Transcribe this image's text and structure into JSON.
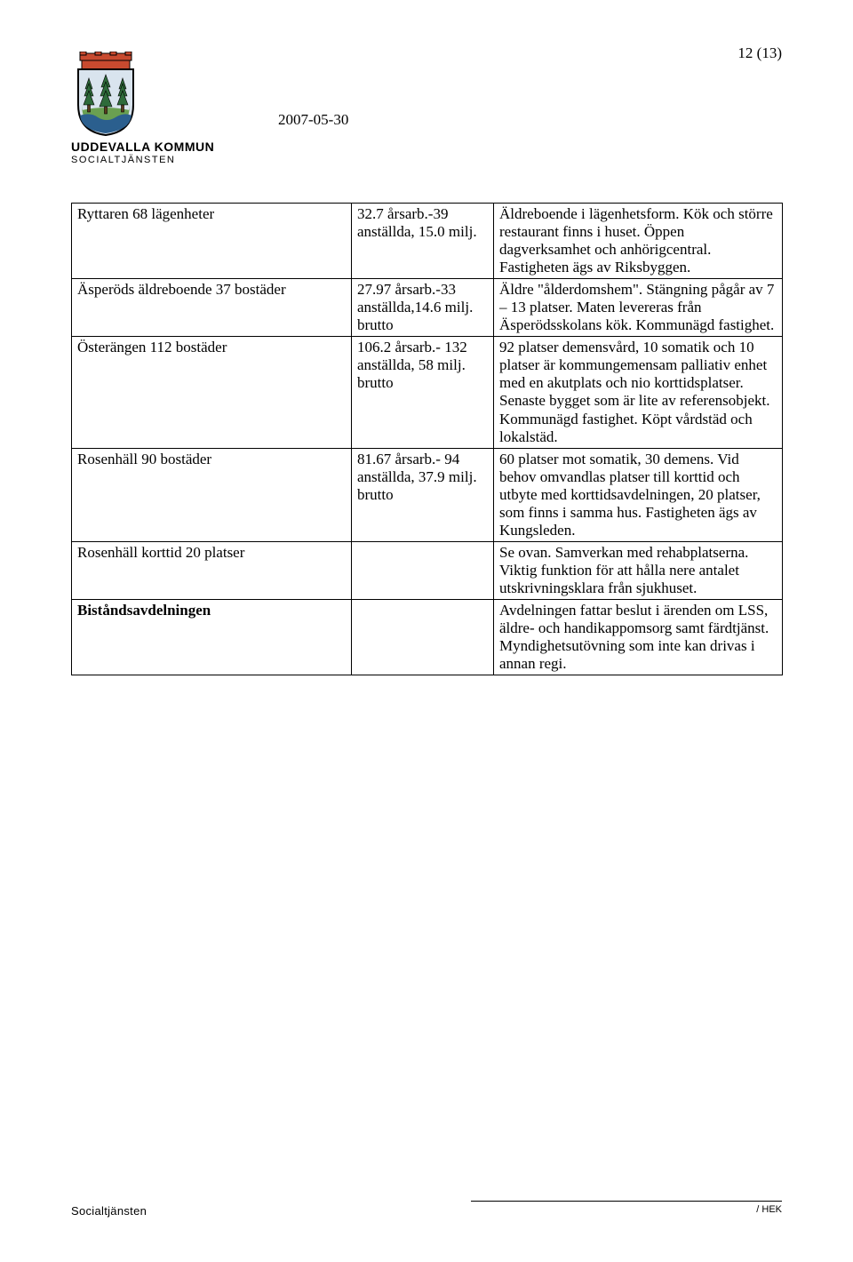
{
  "page_marker": "12 (13)",
  "org": {
    "name": "UDDEVALLA KOMMUN",
    "dept": "SOCIALTJÄNSTEN"
  },
  "doc_date": "2007-05-30",
  "table": {
    "rows": [
      {
        "c1": "Ryttaren 68 lägenheter",
        "c2": "32.7 årsarb.-39 anställda, 15.0 milj.",
        "c3": "Äldreboende i lägenhetsform. Kök och större restaurant finns i huset. Öppen dagverksamhet och anhörigcentral. Fastigheten ägs av Riksbyggen.",
        "bold": false
      },
      {
        "c1": "Äsperöds äldreboende 37 bostäder",
        "c2": "27.97 årsarb.-33 anställda,14.6 milj. brutto",
        "c3": "Äldre \"ålderdomshem\". Stängning pågår av 7 – 13 platser. Maten levereras från Äsperödsskolans kök. Kommunägd fastighet.",
        "bold": false
      },
      {
        "c1": "Österängen 112 bostäder",
        "c2": "106.2 årsarb.- 132 anställda, 58 milj. brutto",
        "c3": "92 platser demensvård, 10 somatik och 10 platser är kommungemensam palliativ enhet med en akutplats och nio korttidsplatser. Senaste bygget som är lite av referensobjekt. Kommunägd fastighet. Köpt vårdstäd och lokalstäd.",
        "bold": false
      },
      {
        "c1": "Rosenhäll 90 bostäder",
        "c2": "81.67 årsarb.- 94 anställda, 37.9 milj. brutto",
        "c3": "60 platser mot somatik, 30 demens. Vid behov omvandlas platser till korttid och utbyte med korttidsavdelningen, 20 platser, som finns i samma hus. Fastigheten ägs av Kungsleden.",
        "bold": false
      },
      {
        "c1": "Rosenhäll korttid 20 platser",
        "c2": "",
        "c3": "Se ovan. Samverkan med rehabplatserna. Viktig funktion för att hålla nere antalet utskrivningsklara från sjukhuset.",
        "bold": false
      },
      {
        "c1": "Biståndsavdelningen",
        "c2": "",
        "c3": "Avdelningen fattar beslut i ärenden om LSS, äldre- och handikappomsorg samt färdtjänst. Myndighetsutövning som inte kan drivas i annan regi.",
        "bold": true
      }
    ]
  },
  "footer": {
    "left": "Socialtjänsten",
    "right": "/ HEK"
  },
  "colors": {
    "text": "#000000",
    "background": "#ffffff",
    "border": "#000000",
    "shield_outline": "#000000",
    "shield_top": "#c84a2f",
    "shield_body": "#d9e4ee",
    "shield_blue": "#2b5f8e",
    "tree_green": "#2e6b3a",
    "ground_green": "#6aa051"
  }
}
